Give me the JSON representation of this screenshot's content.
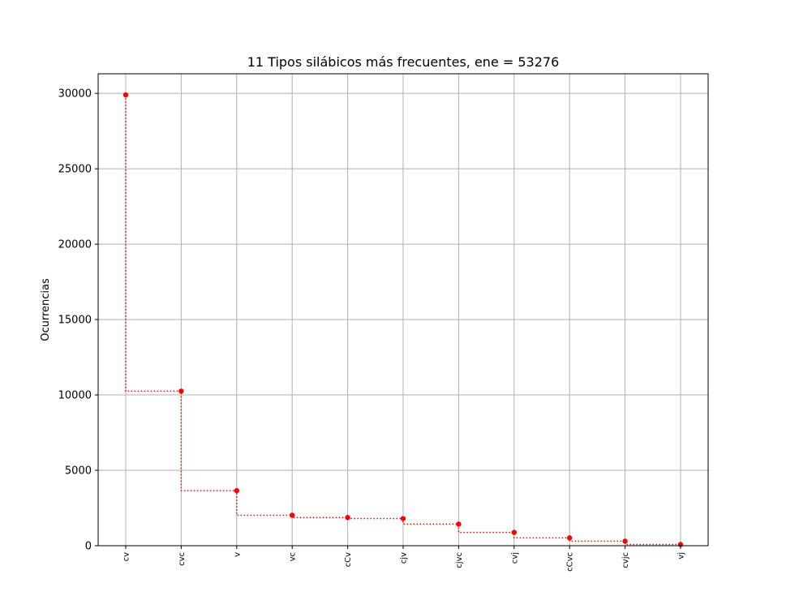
{
  "chart_data": {
    "type": "line",
    "title": "11 Tipos silábicos más frecuentes, ene = 53276",
    "xlabel": "",
    "ylabel": "Ocurrencias",
    "categories": [
      "cv",
      "cvc",
      "v",
      "vc",
      "cCv",
      "cjv",
      "cjvc",
      "cvj",
      "cCvc",
      "cvjc",
      "vj"
    ],
    "values": [
      29900,
      10250,
      3650,
      2020,
      1870,
      1800,
      1430,
      880,
      520,
      300,
      80
    ],
    "yticks": [
      0,
      5000,
      10000,
      15000,
      20000,
      25000,
      30000
    ],
    "ylim": [
      0,
      31300
    ],
    "grid": true,
    "line_style": "steps-post, dotted",
    "color": "#ff0000"
  }
}
